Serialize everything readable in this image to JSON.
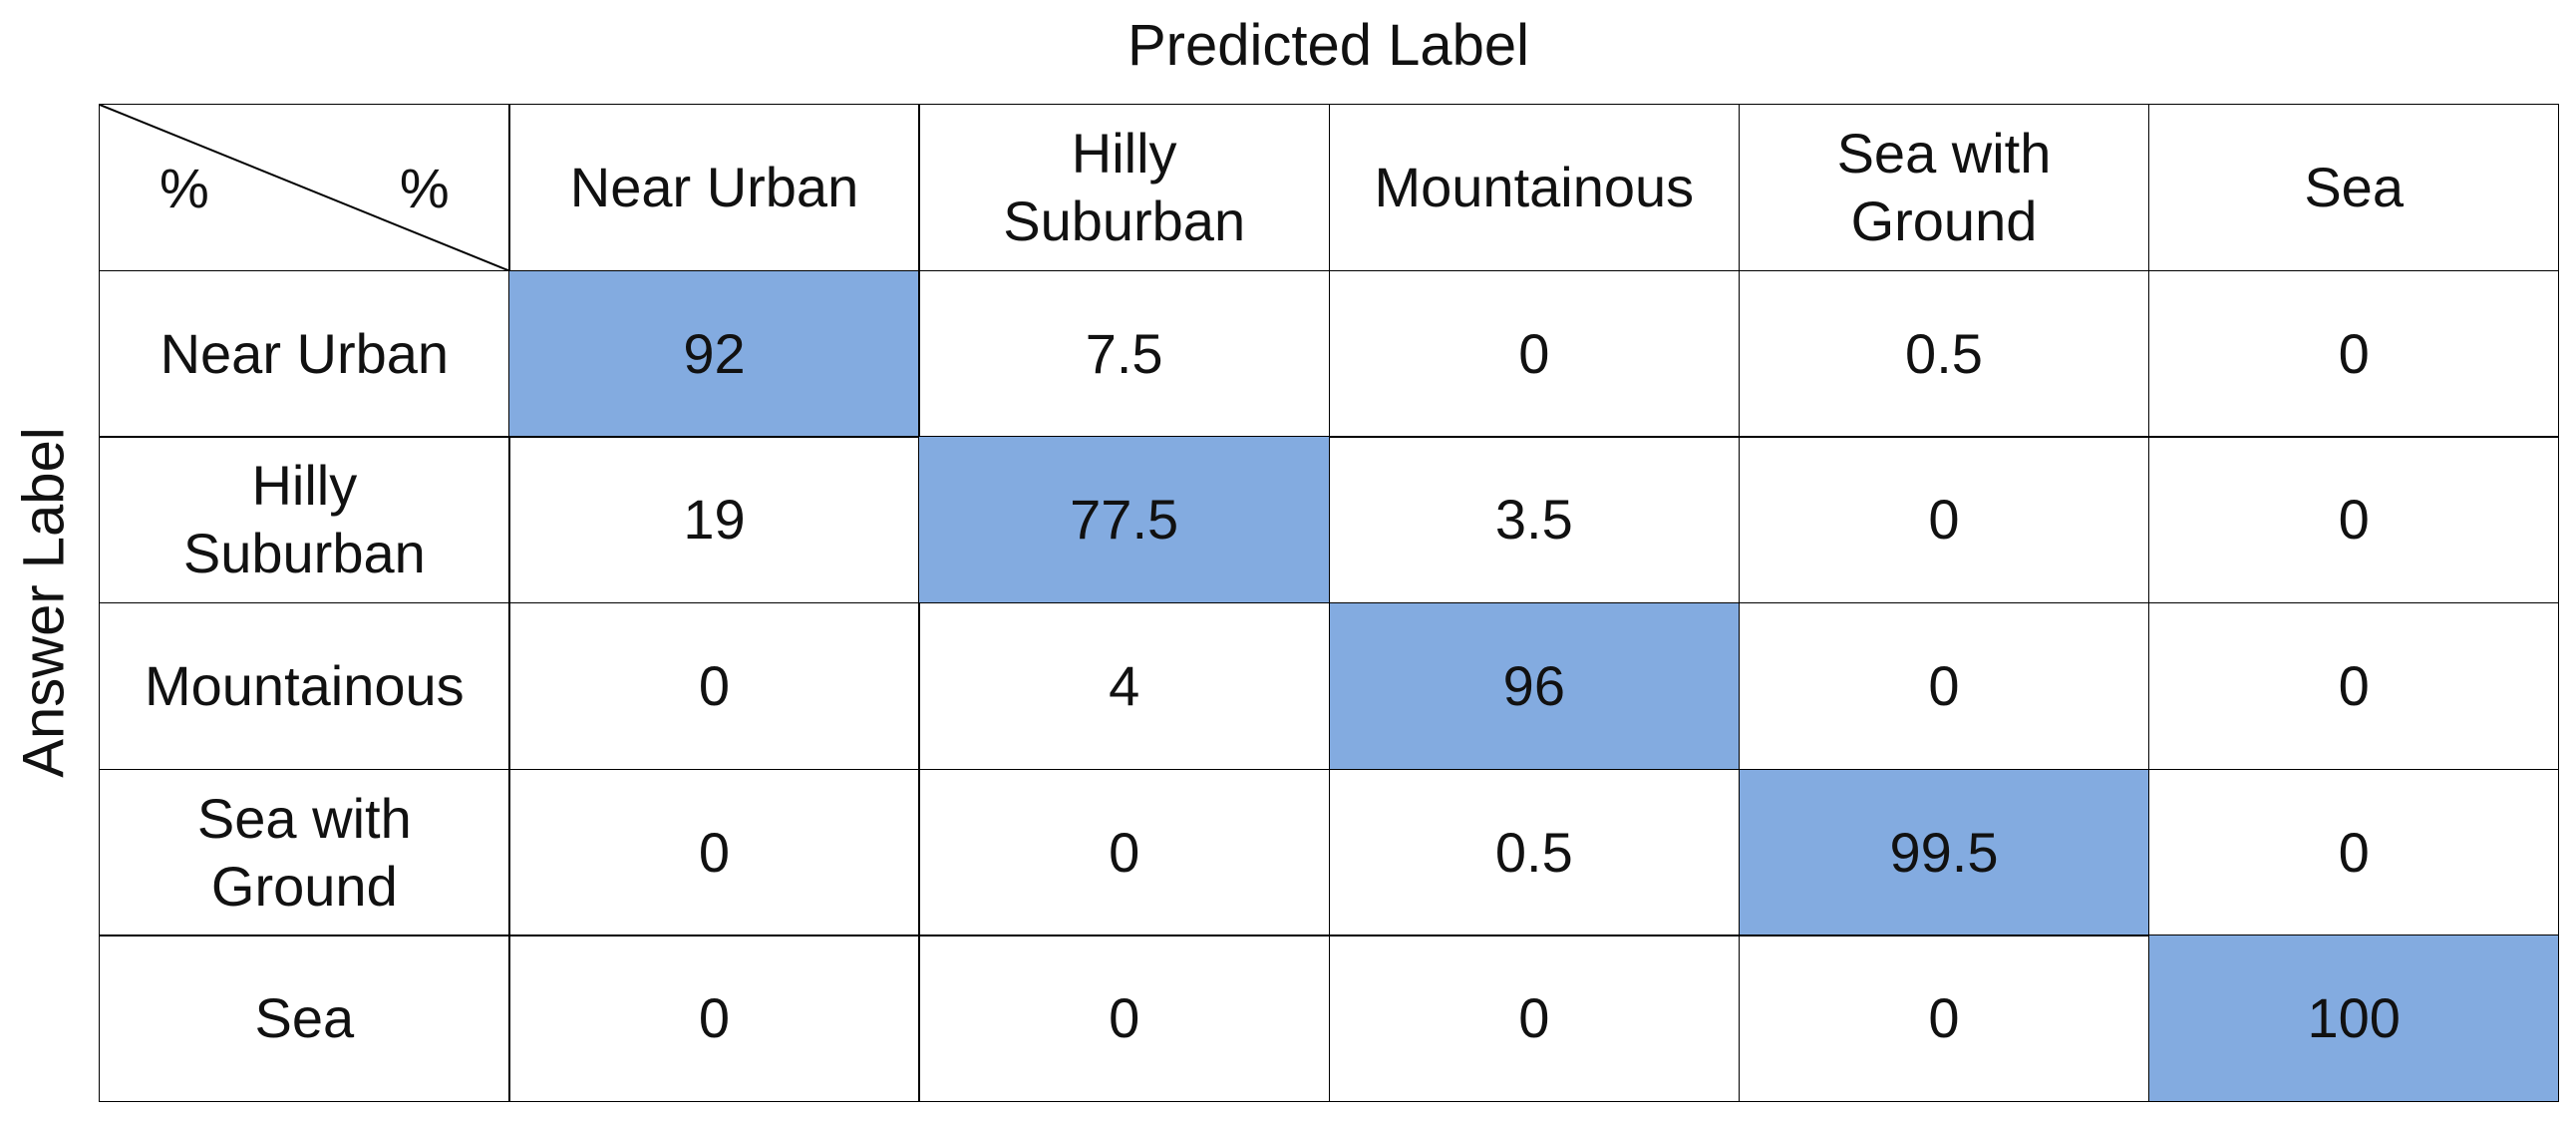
{
  "title": "Predicted Label",
  "y_axis_label": "Answer Label",
  "corner": [
    "%",
    "%"
  ],
  "highlight_color": "#83abe0",
  "columns": [
    "Near Urban",
    "Hilly\nSuburban",
    "Mountainous",
    "Sea with\nGround",
    "Sea"
  ],
  "rows": [
    {
      "label": "Near Urban",
      "values": [
        92,
        7.5,
        0,
        0.5,
        0
      ]
    },
    {
      "label": "Hilly\nSuburban",
      "values": [
        19,
        77.5,
        3.5,
        0,
        0
      ]
    },
    {
      "label": "Mountainous",
      "values": [
        0,
        4,
        96,
        0,
        0
      ]
    },
    {
      "label": "Sea with\nGround",
      "values": [
        0,
        0,
        0.5,
        99.5,
        0
      ]
    },
    {
      "label": "Sea",
      "values": [
        0,
        0,
        0,
        0,
        100
      ]
    }
  ]
}
